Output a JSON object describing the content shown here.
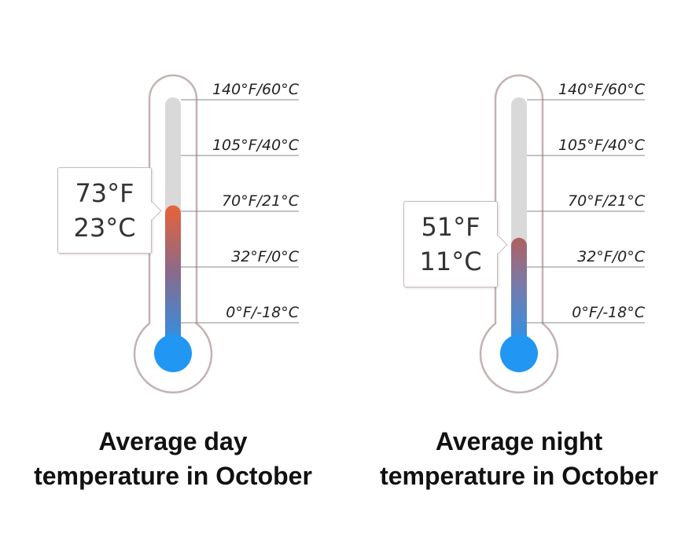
{
  "scale_labels": [
    "140°F/60°C",
    "105°F/40°C",
    "70°F/21°C",
    "32°F/0°C",
    "0°F/-18°C"
  ],
  "thermometers": [
    {
      "reading_f": "73°F",
      "reading_c": "23°C",
      "value_c": 23,
      "caption_line1": "Average day",
      "caption_line2": "temperature in October",
      "fill_top_color": "#e8623a"
    },
    {
      "reading_f": "51°F",
      "reading_c": "11°C",
      "value_c": 11,
      "caption_line1": "Average night",
      "caption_line2": "temperature in October",
      "fill_top_color": "#b06060"
    }
  ],
  "colors": {
    "outline": "#c4b2b2",
    "track": "#d9d9d9",
    "bulb": "#2196f3",
    "tick_line": "#888888"
  },
  "chart_data": {
    "type": "thermometer",
    "unit": "°C",
    "series": [
      {
        "name": "Average day temperature in October",
        "value_f": 73,
        "value_c": 23
      },
      {
        "name": "Average night temperature in October",
        "value_f": 51,
        "value_c": 11
      }
    ]
  }
}
